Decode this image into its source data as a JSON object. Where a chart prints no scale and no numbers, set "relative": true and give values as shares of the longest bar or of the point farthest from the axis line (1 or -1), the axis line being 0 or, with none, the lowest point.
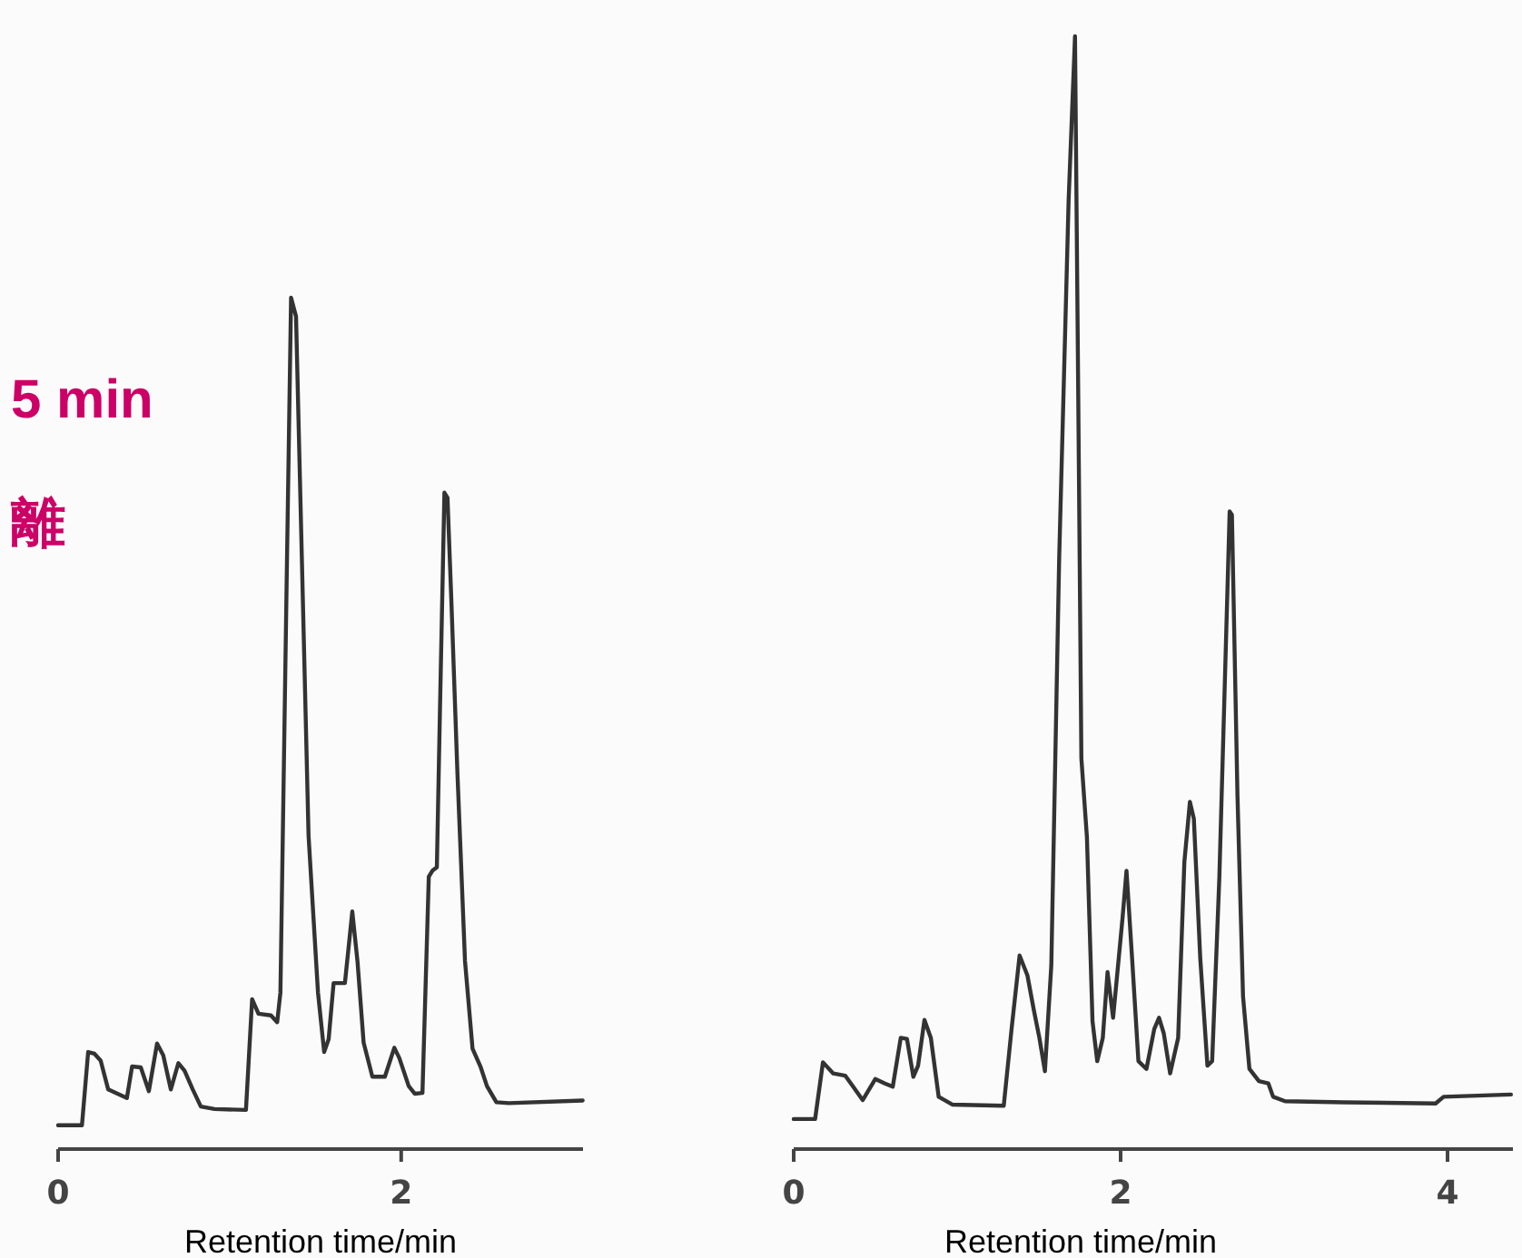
{
  "chart_data": [
    {
      "type": "line",
      "relative": true,
      "xlabel": "Retention time/min",
      "xlim": [
        0,
        3.06
      ],
      "xticks": [
        0,
        2
      ],
      "tick_labels": "x",
      "annotations": [
        "5 min",
        "離"
      ],
      "series": [
        {
          "color": "#333333",
          "x": [
            0,
            0.139,
            0.175,
            0.212,
            0.248,
            0.292,
            0.401,
            0.431,
            0.482,
            0.529,
            0.577,
            0.613,
            0.657,
            0.701,
            0.737,
            0.785,
            0.832,
            0.912,
            1.095,
            1.131,
            1.168,
            1.241,
            1.277,
            1.296,
            1.332,
            1.358,
            1.387,
            1.416,
            1.46,
            1.515,
            1.551,
            1.577,
            1.606,
            1.672,
            1.715,
            1.745,
            1.781,
            1.832,
            1.905,
            1.96,
            1.989,
            2.044,
            2.08,
            2.124,
            2.161,
            2.182,
            2.208,
            2.226,
            2.252,
            2.27,
            2.292,
            2.328,
            2.372,
            2.416,
            2.464,
            2.5,
            2.555,
            2.628,
            3.058
          ],
          "values": [
            0.028,
            0.028,
            0.114,
            0.112,
            0.104,
            0.07,
            0.06,
            0.097,
            0.096,
            0.068,
            0.124,
            0.11,
            0.07,
            0.101,
            0.092,
            0.07,
            0.05,
            0.047,
            0.046,
            0.176,
            0.159,
            0.157,
            0.149,
            0.184,
            0.662,
            1.0,
            0.978,
            0.735,
            0.368,
            0.184,
            0.114,
            0.129,
            0.195,
            0.195,
            0.279,
            0.221,
            0.125,
            0.085,
            0.085,
            0.119,
            0.107,
            0.074,
            0.065,
            0.066,
            0.32,
            0.327,
            0.331,
            0.515,
            0.771,
            0.765,
            0.647,
            0.441,
            0.221,
            0.118,
            0.096,
            0.074,
            0.055,
            0.054,
            0.057
          ]
        }
      ]
    },
    {
      "type": "line",
      "relative": true,
      "xlabel": "Retention time/min",
      "xlim": [
        0,
        4.4
      ],
      "xticks": [
        0,
        2,
        4
      ],
      "tick_labels": "x",
      "series": [
        {
          "color": "#333333",
          "x": [
            0,
            0.131,
            0.179,
            0.242,
            0.315,
            0.364,
            0.422,
            0.499,
            0.558,
            0.606,
            0.655,
            0.693,
            0.732,
            0.761,
            0.8,
            0.839,
            0.887,
            0.97,
            1.285,
            1.333,
            1.382,
            1.43,
            1.469,
            1.503,
            1.537,
            1.576,
            1.624,
            1.682,
            1.721,
            1.741,
            1.76,
            1.794,
            1.828,
            1.857,
            1.891,
            1.92,
            1.954,
            2.012,
            2.036,
            2.07,
            2.109,
            2.158,
            2.206,
            2.235,
            2.264,
            2.303,
            2.352,
            2.39,
            2.424,
            2.448,
            2.487,
            2.531,
            2.56,
            2.604,
            2.667,
            2.681,
            2.715,
            2.749,
            2.788,
            2.846,
            2.904,
            2.933,
            3.006,
            3.37,
            3.927,
            3.976,
            4.388
          ],
          "values": [
            0.027,
            0.027,
            0.078,
            0.068,
            0.066,
            0.056,
            0.044,
            0.063,
            0.059,
            0.056,
            0.1,
            0.099,
            0.065,
            0.075,
            0.116,
            0.1,
            0.047,
            0.04,
            0.039,
            0.108,
            0.174,
            0.156,
            0.125,
            0.1,
            0.07,
            0.165,
            0.53,
            0.853,
            1.0,
            0.674,
            0.351,
            0.28,
            0.115,
            0.079,
            0.1,
            0.159,
            0.118,
            0.208,
            0.25,
            0.172,
            0.079,
            0.072,
            0.108,
            0.118,
            0.104,
            0.068,
            0.1,
            0.258,
            0.312,
            0.297,
            0.172,
            0.075,
            0.079,
            0.244,
            0.573,
            0.57,
            0.317,
            0.137,
            0.072,
            0.061,
            0.059,
            0.047,
            0.043,
            0.042,
            0.041,
            0.047,
            0.049
          ]
        }
      ]
    }
  ]
}
